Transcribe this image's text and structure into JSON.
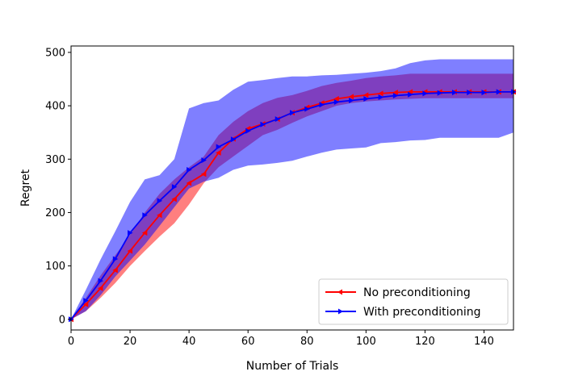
{
  "chart_data": {
    "type": "line",
    "title": "",
    "xlabel": "Number of Trials",
    "ylabel": "Regret",
    "xlim": [
      0,
      150
    ],
    "ylim": [
      -20,
      512
    ],
    "xticks": [
      0,
      20,
      40,
      60,
      80,
      100,
      120,
      140
    ],
    "yticks": [
      0,
      100,
      200,
      300,
      400,
      500
    ],
    "grid": false,
    "legend_position": "lower-right",
    "series": [
      {
        "name": "No preconditioning",
        "color": "#ff0000",
        "band_color": "#ff0000",
        "marker": "left-triangle",
        "x": [
          0,
          5,
          10,
          15,
          20,
          25,
          30,
          35,
          40,
          45,
          50,
          55,
          60,
          65,
          70,
          75,
          80,
          85,
          90,
          95,
          100,
          105,
          110,
          115,
          120,
          125,
          130,
          135,
          140,
          145,
          150
        ],
        "y": [
          0,
          28,
          58,
          92,
          128,
          162,
          195,
          225,
          255,
          272,
          312,
          338,
          357,
          366,
          375,
          387,
          397,
          405,
          413,
          417,
          420,
          423,
          425,
          426,
          426,
          426,
          426,
          426,
          426,
          426,
          426
        ],
        "lower": [
          0,
          15,
          40,
          68,
          100,
          128,
          155,
          180,
          215,
          255,
          285,
          305,
          325,
          345,
          355,
          368,
          380,
          390,
          400,
          405,
          408,
          410,
          412,
          413,
          414,
          414,
          414,
          414,
          414,
          414,
          414
        ],
        "upper": [
          0,
          40,
          82,
          120,
          158,
          200,
          235,
          262,
          285,
          305,
          345,
          370,
          390,
          405,
          415,
          420,
          428,
          437,
          443,
          447,
          452,
          455,
          457,
          460,
          460,
          460,
          460,
          460,
          460,
          460,
          460
        ]
      },
      {
        "name": "With preconditioning",
        "color": "#0000ff",
        "band_color": "#0000ff",
        "marker": "right-triangle",
        "x": [
          0,
          5,
          10,
          15,
          20,
          25,
          30,
          35,
          40,
          45,
          50,
          55,
          60,
          65,
          70,
          75,
          80,
          85,
          90,
          95,
          100,
          105,
          110,
          115,
          120,
          125,
          130,
          135,
          140,
          145,
          150
        ],
        "y": [
          0,
          35,
          72,
          113,
          162,
          195,
          222,
          248,
          280,
          298,
          323,
          337,
          353,
          365,
          375,
          387,
          394,
          402,
          407,
          410,
          413,
          416,
          419,
          421,
          423,
          424,
          425,
          425,
          425,
          426,
          426
        ],
        "lower": [
          0,
          15,
          45,
          80,
          110,
          140,
          175,
          210,
          245,
          258,
          265,
          280,
          288,
          290,
          293,
          297,
          305,
          312,
          318,
          320,
          322,
          330,
          332,
          335,
          336,
          340,
          340,
          340,
          340,
          340,
          350
        ],
        "upper": [
          0,
          55,
          112,
          165,
          220,
          262,
          270,
          300,
          395,
          405,
          410,
          430,
          445,
          448,
          452,
          455,
          455,
          457,
          458,
          460,
          462,
          465,
          470,
          480,
          485,
          487,
          487,
          487,
          487,
          487,
          487
        ]
      }
    ]
  }
}
